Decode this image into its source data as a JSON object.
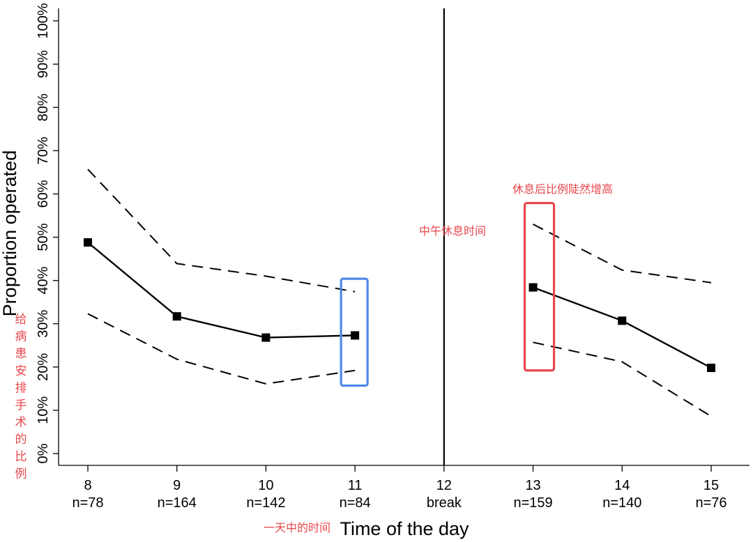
{
  "chart_data": {
    "type": "line",
    "title": "",
    "xlabel": "Time of the day",
    "xlabel_note": "一天中的时间",
    "ylabel": "Proportion operated",
    "ylabel_note": "给病患安排手术的比例",
    "ylim": [
      0,
      100
    ],
    "y_ticks": [
      "0%",
      "10%",
      "20%",
      "30%",
      "40%",
      "50%",
      "60%",
      "70%",
      "80%",
      "90%",
      "100%"
    ],
    "x_ticks": [
      {
        "hour": "8",
        "n": "n=78"
      },
      {
        "hour": "9",
        "n": "n=164"
      },
      {
        "hour": "10",
        "n": "n=142"
      },
      {
        "hour": "11",
        "n": "n=84"
      },
      {
        "hour": "12",
        "n": "break"
      },
      {
        "hour": "13",
        "n": "n=159"
      },
      {
        "hour": "14",
        "n": "n=140"
      },
      {
        "hour": "15",
        "n": "n=76"
      }
    ],
    "break_hour": 12,
    "series": [
      {
        "name": "Proportion operated (morning)",
        "style": "solid",
        "x": [
          8,
          9,
          10,
          11
        ],
        "values": [
          48.8,
          31.7,
          26.8,
          27.3
        ]
      },
      {
        "name": "Proportion operated (afternoon)",
        "style": "solid",
        "x": [
          13,
          14,
          15
        ],
        "values": [
          38.4,
          30.7,
          19.8
        ]
      },
      {
        "name": "Upper CI (morning)",
        "style": "dashed",
        "x": [
          8,
          9,
          10,
          11
        ],
        "values": [
          65.7,
          43.9,
          41.0,
          37.4
        ]
      },
      {
        "name": "Lower CI (morning)",
        "style": "dashed",
        "x": [
          8,
          9,
          10,
          11
        ],
        "values": [
          32.3,
          21.8,
          16.1,
          19.2
        ]
      },
      {
        "name": "Upper CI (afternoon)",
        "style": "dashed",
        "x": [
          13,
          14,
          15
        ],
        "values": [
          53.0,
          42.4,
          39.5
        ]
      },
      {
        "name": "Lower CI (afternoon)",
        "style": "dashed",
        "x": [
          13,
          14,
          15
        ],
        "values": [
          25.7,
          21.2,
          8.6
        ]
      }
    ],
    "annotations": {
      "break_label": "中午休息时间",
      "rise_label": "休息后比例陡然增高"
    },
    "colors": {
      "line": "#000000",
      "annotation_text": "#e8474c",
      "highlight_blue": "#4f88ea",
      "highlight_red": "#e8474c"
    }
  }
}
